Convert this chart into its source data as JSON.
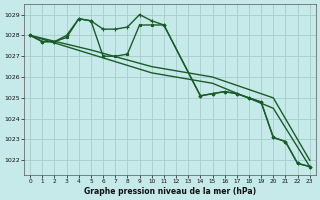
{
  "background_color": "#c6eaea",
  "grid_color": "#a8cccc",
  "line_color": "#1a5c28",
  "title": "Graphe pression niveau de la mer (hPa)",
  "xlim": [
    -0.5,
    23.5
  ],
  "ylim": [
    1021.3,
    1029.5
  ],
  "yticks": [
    1022,
    1023,
    1024,
    1025,
    1026,
    1027,
    1028,
    1029
  ],
  "xticks": [
    0,
    1,
    2,
    3,
    4,
    5,
    6,
    7,
    8,
    9,
    10,
    11,
    12,
    13,
    14,
    15,
    16,
    17,
    18,
    19,
    20,
    21,
    22,
    23
  ],
  "series": [
    {
      "x": [
        0,
        1,
        2,
        3,
        4,
        5,
        6,
        7,
        8,
        9,
        10,
        11,
        14,
        15,
        16,
        17,
        18,
        19,
        20,
        21,
        22,
        23
      ],
      "y": [
        1028.0,
        1027.7,
        1027.7,
        1028.0,
        1028.8,
        1028.7,
        1028.3,
        1028.3,
        1028.4,
        1029.0,
        1028.7,
        1028.5,
        1025.1,
        1025.2,
        1025.3,
        1025.2,
        1025.0,
        1024.8,
        1023.1,
        1022.9,
        1021.85,
        1021.7
      ],
      "marker": "+",
      "markersize": 3.5,
      "linewidth": 1.0
    },
    {
      "x": [
        0,
        1,
        2,
        3,
        4,
        5,
        6,
        7,
        8,
        9,
        10,
        11,
        14,
        15,
        16,
        17,
        18,
        19,
        20,
        21,
        22,
        23
      ],
      "y": [
        1028.0,
        1027.7,
        1027.7,
        1027.9,
        1028.8,
        1028.7,
        1027.0,
        1027.0,
        1027.1,
        1028.5,
        1028.5,
        1028.5,
        1025.1,
        1025.2,
        1025.3,
        1025.2,
        1025.0,
        1024.8,
        1023.1,
        1022.9,
        1021.85,
        1021.7
      ],
      "marker": "s",
      "markersize": 2.0,
      "linewidth": 1.0
    },
    {
      "x": [
        0,
        5,
        10,
        15,
        20,
        23
      ],
      "y": [
        1028.0,
        1027.3,
        1026.5,
        1026.0,
        1025.0,
        1022.0
      ],
      "marker": null,
      "markersize": 0,
      "linewidth": 1.0
    },
    {
      "x": [
        0,
        5,
        10,
        15,
        20,
        23
      ],
      "y": [
        1028.0,
        1027.1,
        1026.2,
        1025.7,
        1024.5,
        1021.7
      ],
      "marker": null,
      "markersize": 0,
      "linewidth": 1.0
    }
  ]
}
